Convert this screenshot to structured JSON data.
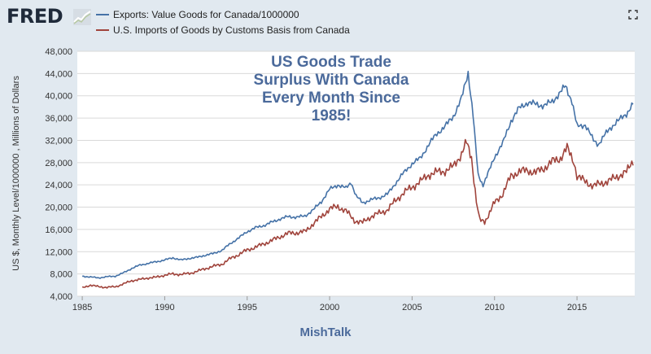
{
  "header": {
    "logo_text": "FRED",
    "fullscreen_icon": "fullscreen-icon"
  },
  "watermark": "MishTalk",
  "chart_data": {
    "type": "line",
    "title": "",
    "annotation": [
      "US Goods Trade",
      "Surplus With Canada",
      "Every Month Since",
      "1985!"
    ],
    "ylabel": "US $, Monthly Level/1000000 , Millions of Dollars",
    "xlabel": "",
    "xlim": [
      1984.7,
      2018.5
    ],
    "ylim": [
      4000,
      48000
    ],
    "yticks": [
      4000,
      8000,
      12000,
      16000,
      20000,
      24000,
      28000,
      32000,
      36000,
      40000,
      44000,
      48000
    ],
    "ytick_labels": [
      "4,000",
      "8,000",
      "12,000",
      "16,000",
      "20,000",
      "24,000",
      "28,000",
      "32,000",
      "36,000",
      "40,000",
      "44,000",
      "48,000"
    ],
    "xticks": [
      1985,
      1990,
      1995,
      2000,
      2005,
      2010,
      2015
    ],
    "xtick_labels": [
      "1985",
      "1990",
      "1995",
      "2000",
      "2005",
      "2010",
      "2015"
    ],
    "grid": true,
    "legend_position": "top-left",
    "series": [
      {
        "name": "Exports: Value Goods for Canada/1000000",
        "color": "#4572a7",
        "points": [
          [
            1985.0,
            7600
          ],
          [
            1986.0,
            7300
          ],
          [
            1986.5,
            7500
          ],
          [
            1987.0,
            7600
          ],
          [
            1987.5,
            8200
          ],
          [
            1988.0,
            9000
          ],
          [
            1988.5,
            9600
          ],
          [
            1989.0,
            9900
          ],
          [
            1989.5,
            10200
          ],
          [
            1990.0,
            10500
          ],
          [
            1990.5,
            10900
          ],
          [
            1991.0,
            10500
          ],
          [
            1991.5,
            10800
          ],
          [
            1992.0,
            11000
          ],
          [
            1992.5,
            11400
          ],
          [
            1993.0,
            11700
          ],
          [
            1993.5,
            12300
          ],
          [
            1994.0,
            13500
          ],
          [
            1994.5,
            14500
          ],
          [
            1995.0,
            15600
          ],
          [
            1995.5,
            16300
          ],
          [
            1996.0,
            16700
          ],
          [
            1996.5,
            17300
          ],
          [
            1997.0,
            17900
          ],
          [
            1997.5,
            18300
          ],
          [
            1998.0,
            18200
          ],
          [
            1998.5,
            18400
          ],
          [
            1999.0,
            19500
          ],
          [
            1999.5,
            21000
          ],
          [
            2000.0,
            23200
          ],
          [
            2000.5,
            24000
          ],
          [
            2001.0,
            23400
          ],
          [
            2001.3,
            24500
          ],
          [
            2001.6,
            22000
          ],
          [
            2002.0,
            20800
          ],
          [
            2002.5,
            21300
          ],
          [
            2003.0,
            21700
          ],
          [
            2003.5,
            22300
          ],
          [
            2004.0,
            24300
          ],
          [
            2004.5,
            26200
          ],
          [
            2005.0,
            27800
          ],
          [
            2005.5,
            28800
          ],
          [
            2006.0,
            31200
          ],
          [
            2006.5,
            33200
          ],
          [
            2007.0,
            34500
          ],
          [
            2007.5,
            36300
          ],
          [
            2008.0,
            39500
          ],
          [
            2008.4,
            44200
          ],
          [
            2008.7,
            36500
          ],
          [
            2009.0,
            25800
          ],
          [
            2009.3,
            24000
          ],
          [
            2009.6,
            26000
          ],
          [
            2010.0,
            29000
          ],
          [
            2010.5,
            31500
          ],
          [
            2011.0,
            35500
          ],
          [
            2011.5,
            37800
          ],
          [
            2012.0,
            38800
          ],
          [
            2012.5,
            38500
          ],
          [
            2013.0,
            38200
          ],
          [
            2013.5,
            39000
          ],
          [
            2014.0,
            40600
          ],
          [
            2014.3,
            41800
          ],
          [
            2014.7,
            39000
          ],
          [
            2015.0,
            34500
          ],
          [
            2015.5,
            34800
          ],
          [
            2016.0,
            32000
          ],
          [
            2016.3,
            31300
          ],
          [
            2016.7,
            33000
          ],
          [
            2017.0,
            34200
          ],
          [
            2017.5,
            35500
          ],
          [
            2018.0,
            36800
          ],
          [
            2018.4,
            38500
          ]
        ]
      },
      {
        "name": "U.S. Imports of Goods by Customs Basis from Canada",
        "color": "#a0443c",
        "points": [
          [
            1985.0,
            5500
          ],
          [
            1985.5,
            6000
          ],
          [
            1986.0,
            5700
          ],
          [
            1986.5,
            5600
          ],
          [
            1987.0,
            5700
          ],
          [
            1987.5,
            6200
          ],
          [
            1988.0,
            6800
          ],
          [
            1988.5,
            7000
          ],
          [
            1989.0,
            7300
          ],
          [
            1989.5,
            7400
          ],
          [
            1990.0,
            7800
          ],
          [
            1990.5,
            8000
          ],
          [
            1991.0,
            7900
          ],
          [
            1991.5,
            8100
          ],
          [
            1992.0,
            8500
          ],
          [
            1992.5,
            9000
          ],
          [
            1993.0,
            9400
          ],
          [
            1993.5,
            9800
          ],
          [
            1994.0,
            10800
          ],
          [
            1994.5,
            11500
          ],
          [
            1995.0,
            12300
          ],
          [
            1995.5,
            12800
          ],
          [
            1996.0,
            13400
          ],
          [
            1996.5,
            14000
          ],
          [
            1997.0,
            14700
          ],
          [
            1997.5,
            15300
          ],
          [
            1998.0,
            15400
          ],
          [
            1998.5,
            15600
          ],
          [
            1999.0,
            17000
          ],
          [
            1999.5,
            18300
          ],
          [
            2000.0,
            19700
          ],
          [
            2000.5,
            20100
          ],
          [
            2001.0,
            19300
          ],
          [
            2001.5,
            17600
          ],
          [
            2002.0,
            17200
          ],
          [
            2002.5,
            18300
          ],
          [
            2003.0,
            18900
          ],
          [
            2003.5,
            19500
          ],
          [
            2004.0,
            21200
          ],
          [
            2004.5,
            22600
          ],
          [
            2005.0,
            23600
          ],
          [
            2005.5,
            24600
          ],
          [
            2006.0,
            25800
          ],
          [
            2006.5,
            26300
          ],
          [
            2007.0,
            26500
          ],
          [
            2007.5,
            27300
          ],
          [
            2008.0,
            29600
          ],
          [
            2008.3,
            31600
          ],
          [
            2008.6,
            29000
          ],
          [
            2008.9,
            21000
          ],
          [
            2009.1,
            17600
          ],
          [
            2009.4,
            17400
          ],
          [
            2009.7,
            19000
          ],
          [
            2010.0,
            20800
          ],
          [
            2010.5,
            22400
          ],
          [
            2011.0,
            25600
          ],
          [
            2011.5,
            26400
          ],
          [
            2012.0,
            26600
          ],
          [
            2012.5,
            26200
          ],
          [
            2013.0,
            27000
          ],
          [
            2013.5,
            28200
          ],
          [
            2014.0,
            28800
          ],
          [
            2014.4,
            30600
          ],
          [
            2014.8,
            28300
          ],
          [
            2015.0,
            25600
          ],
          [
            2015.5,
            24600
          ],
          [
            2016.0,
            23800
          ],
          [
            2016.5,
            24300
          ],
          [
            2017.0,
            24800
          ],
          [
            2017.5,
            25600
          ],
          [
            2018.0,
            26300
          ],
          [
            2018.4,
            28400
          ]
        ]
      }
    ]
  }
}
